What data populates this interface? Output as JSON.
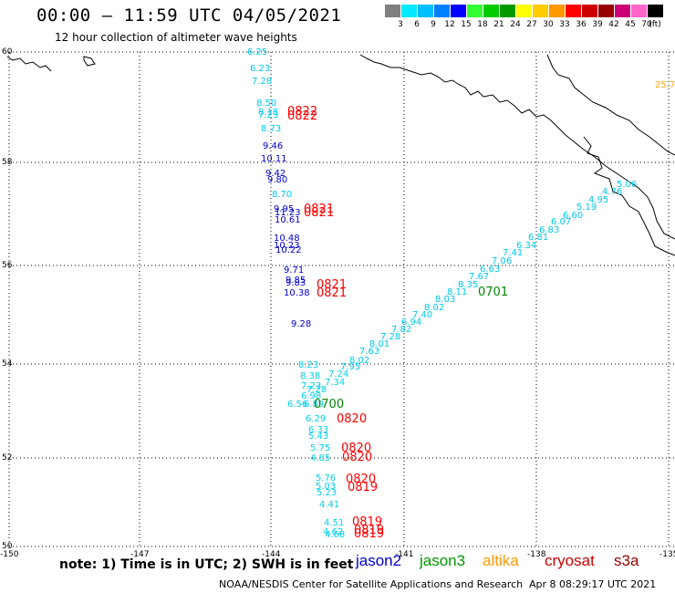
{
  "header": {
    "title": "00:00 — 11:59 UTC 04/05/2021",
    "subtitle": "12 hour collection of altimeter wave heights"
  },
  "legend": {
    "unit": "(ft)",
    "items": [
      {
        "label": "",
        "color": "#808080"
      },
      {
        "label": "3",
        "color": "#00eaff"
      },
      {
        "label": "6",
        "color": "#00bfff"
      },
      {
        "label": "9",
        "color": "#0080ff"
      },
      {
        "label": "12",
        "color": "#0000ff"
      },
      {
        "label": "15",
        "color": "#33ff33"
      },
      {
        "label": "18",
        "color": "#00cc00"
      },
      {
        "label": "21",
        "color": "#009900"
      },
      {
        "label": "24",
        "color": "#ffff00"
      },
      {
        "label": "27",
        "color": "#ffcc00"
      },
      {
        "label": "30",
        "color": "#ff9900"
      },
      {
        "label": "33",
        "color": "#ff0000"
      },
      {
        "label": "36",
        "color": "#cc0000"
      },
      {
        "label": "39",
        "color": "#990000"
      },
      {
        "label": "42",
        "color": "#cc0077"
      },
      {
        "label": "45",
        "color": "#ff66cc"
      },
      {
        "label": "70",
        "color": "#000000"
      }
    ]
  },
  "axes": {
    "lat_labels": [
      "60",
      "58",
      "56",
      "54",
      "52",
      "50"
    ],
    "lon_labels": [
      "-150",
      "-147",
      "-144",
      "-141",
      "-138",
      "-135"
    ]
  },
  "tracks": {
    "track_a": {
      "values": [
        "6.25",
        "6.23",
        "7.28",
        "8.50",
        "8.18",
        "7.23",
        "8.73",
        "9.46",
        "10.11",
        "9.42",
        "9.80",
        "8.70",
        "9.95",
        "11.23",
        "10.61",
        "10.48",
        "10.23",
        "10.22",
        "9.71",
        "9.85",
        "9.83",
        "10.38",
        "9.28"
      ],
      "colors": [
        "#00c8f0",
        "#00c8f0",
        "#00c8f0",
        "#00c8f0",
        "#00c8f0",
        "#00c8f0",
        "#00c8f0",
        "#0000cc",
        "#0000cc",
        "#0000cc",
        "#0000cc",
        "#00c8f0",
        "#0000cc",
        "#0000cc",
        "#0000cc",
        "#0000cc",
        "#0000cc",
        "#0000cc",
        "#0000cc",
        "#0000cc",
        "#0000cc",
        "#0000cc",
        "#0000cc"
      ]
    },
    "track_b": {
      "values": [
        "8.23",
        "8.38",
        "7.24",
        "7.23",
        "7.34",
        "7.28",
        "6.98",
        "6.56",
        "6.89",
        "6.29",
        "6.33",
        "5.43",
        "5.75",
        "4.85",
        "5.76",
        "5.03",
        "5.23",
        "4.41",
        "4.51",
        "4.62",
        "4.68"
      ]
    },
    "track_c": {
      "values": [
        "7.95",
        "8.02",
        "7.63",
        "8.01",
        "7.28",
        "7.82",
        "6.94",
        "7.40",
        "8.02",
        "8.03",
        "8.11",
        "8.35",
        "7.67",
        "6.63",
        "7.06",
        "7.41",
        "6.34",
        "6.81",
        "6.83",
        "6.07",
        "6.60",
        "5.19",
        "4.95",
        "4.76",
        "5.06"
      ]
    },
    "times": [
      {
        "text": "0822",
        "satellite": "cryosat"
      },
      {
        "text": "0822",
        "satellite": "cryosat"
      },
      {
        "text": "0821",
        "satellite": "cryosat"
      },
      {
        "text": "0821",
        "satellite": "cryosat"
      },
      {
        "text": "0821",
        "satellite": "cryosat"
      },
      {
        "text": "0821",
        "satellite": "cryosat"
      },
      {
        "text": "0700",
        "satellite": "jason3"
      },
      {
        "text": "0820",
        "satellite": "cryosat"
      },
      {
        "text": "0820",
        "satellite": "cryosat"
      },
      {
        "text": "0820",
        "satellite": "cryosat"
      },
      {
        "text": "0820",
        "satellite": "cryosat"
      },
      {
        "text": "0819",
        "satellite": "cryosat"
      },
      {
        "text": "0819",
        "satellite": "cryosat"
      },
      {
        "text": "0819",
        "satellite": "cryosat"
      },
      {
        "text": "0819",
        "satellite": "cryosat"
      },
      {
        "text": "0701",
        "satellite": "jason3"
      }
    ],
    "edge_value": "25.7"
  },
  "footer": {
    "note": "note: 1) Time is in UTC; 2) SWH is in feet",
    "satellites": [
      {
        "name": "jason2",
        "color": "#0000cc"
      },
      {
        "name": "jason3",
        "color": "#009900"
      },
      {
        "name": "altika",
        "color": "#ff9900"
      },
      {
        "name": "cryosat",
        "color": "#cc0000"
      },
      {
        "name": "s3a",
        "color": "#990000"
      }
    ],
    "credit": "NOAA/NESDIS Center for Satellite Applications and Research",
    "stamp": "Apr  8 08:29:17 UTC 2021"
  },
  "colors": {
    "cryosat": "#ff0000",
    "jason3": "#008800",
    "track_b": "#00d0e8",
    "track_c": "#00c8e8",
    "edge": "#ffaa00"
  }
}
